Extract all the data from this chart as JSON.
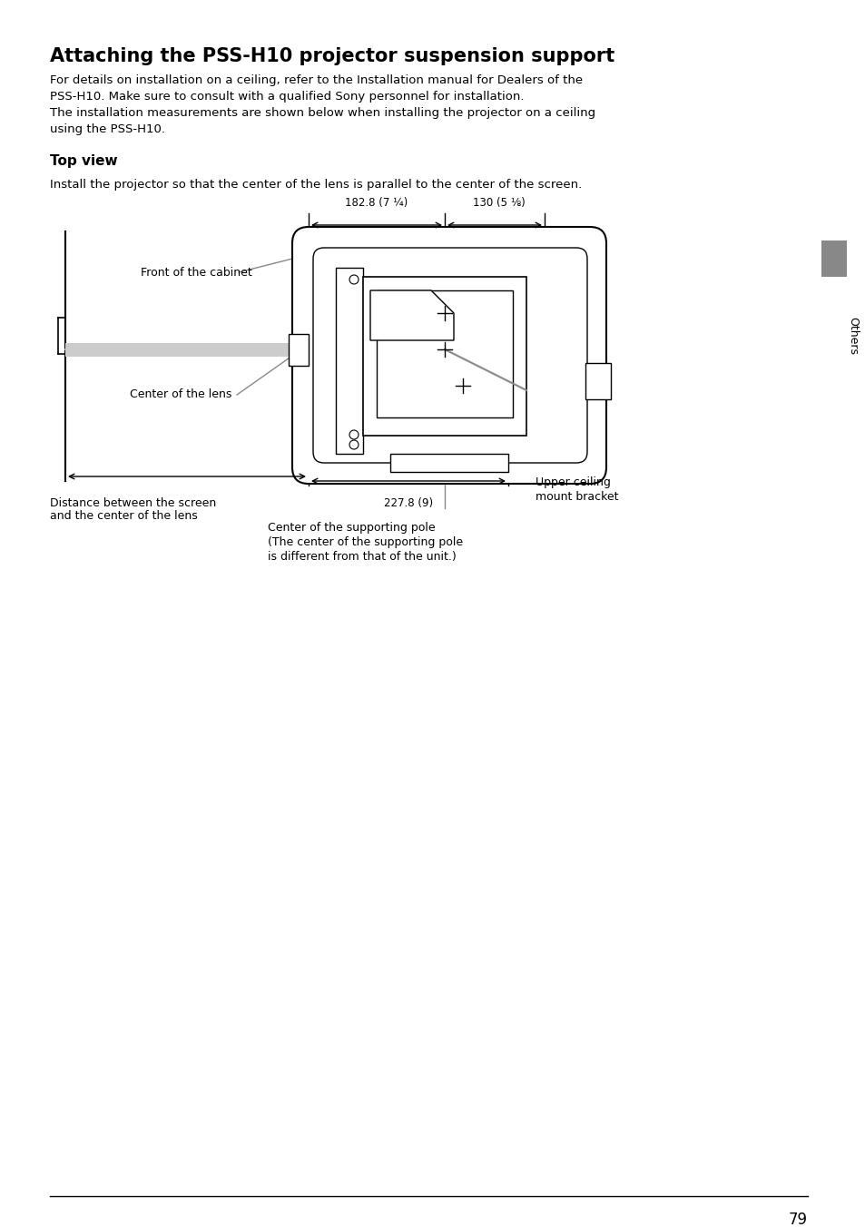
{
  "title": "Attaching the PSS-H10 projector suspension support",
  "body_text_1": "For details on installation on a ceiling, refer to the Installation manual for Dealers of the",
  "body_text_2": "PSS-H10. Make sure to consult with a qualified Sony personnel for installation.",
  "body_text_3": "The installation measurements are shown below when installing the projector on a ceiling",
  "body_text_4": "using the PSS-H10.",
  "subheading": "Top view",
  "subtext": "Install the projector so that the center of the lens is parallel to the center of the screen.",
  "dim_label1": "182.8 (7 ¼)",
  "dim_label2": "130 (5 ⅛)",
  "dim_label3": "227.8 (9)",
  "label_front_cabinet": "Front of the cabinet",
  "label_center_lens": "Center of the lens",
  "label_distance_1": "Distance between the screen",
  "label_distance_2": "and the center of the lens",
  "label_upper_ceiling_1": "Upper ceiling",
  "label_upper_ceiling_2": "mount bracket",
  "label_center_pole_1": "Center of the supporting pole",
  "label_center_pole_2": "(The center of the supporting pole",
  "label_center_pole_3": "is different from that of the unit.)",
  "page_number": "79",
  "sidebar_label": "Others",
  "bg_color": "#ffffff",
  "text_color": "#000000",
  "line_color": "#000000",
  "gray_color": "#888888",
  "light_gray": "#bbbbbb",
  "sidebar_gray": "#888888"
}
